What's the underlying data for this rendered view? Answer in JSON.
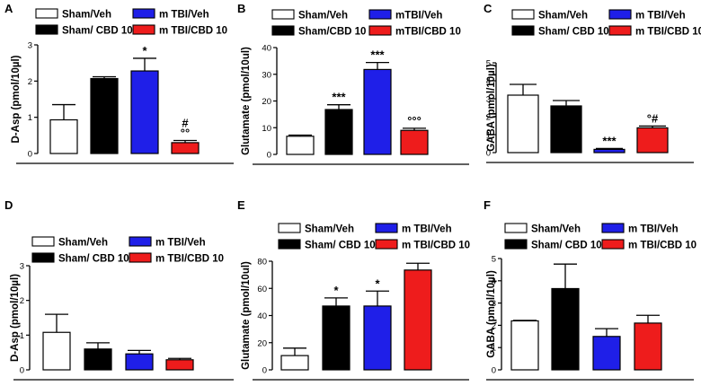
{
  "colors": {
    "sham_veh": "#ffffff",
    "sham_cbd": "#000000",
    "tbi_veh": "#1f1fe8",
    "tbi_cbd": "#ee1c1c"
  },
  "chart_data": [
    {
      "type": "bar",
      "panel_label": "A",
      "ylabel": "D-Asp (pmol/10µl)",
      "ylim": [
        0,
        3
      ],
      "yticks": [
        0,
        1,
        2,
        3
      ],
      "legend": [
        "Sham/Veh",
        "m TBI/Veh",
        "Sham/ CBD 10",
        "m TBI/CBD 10"
      ],
      "series": [
        {
          "name": "Sham/Veh",
          "value": 0.93,
          "error": 0.42,
          "annotation": ""
        },
        {
          "name": "Sham/ CBD 10",
          "value": 2.07,
          "error": 0.05,
          "annotation": ""
        },
        {
          "name": "m TBI/Veh",
          "value": 2.28,
          "error": 0.35,
          "annotation": "*"
        },
        {
          "name": "m TBI/CBD 10",
          "value": 0.3,
          "error": 0.06,
          "annotation": "#\n°°"
        }
      ]
    },
    {
      "type": "bar",
      "panel_label": "B",
      "ylabel": "Glutamate (pmol/10ul)",
      "ylim": [
        0,
        40
      ],
      "yticks": [
        0,
        10,
        20,
        30,
        40
      ],
      "legend": [
        "Sham/Veh",
        "mTBI/Veh",
        "Sham/CBD 10",
        "mTBI/CBD 10"
      ],
      "series": [
        {
          "name": "Sham/Veh",
          "value": 6.8,
          "error": 0.4,
          "annotation": ""
        },
        {
          "name": "Sham/CBD 10",
          "value": 16.8,
          "error": 1.8,
          "annotation": "***"
        },
        {
          "name": "mTBI/Veh",
          "value": 31.8,
          "error": 2.6,
          "annotation": "***"
        },
        {
          "name": "mTBI/CBD 10",
          "value": 9.0,
          "error": 0.8,
          "annotation": "°°°"
        }
      ]
    },
    {
      "type": "bar",
      "panel_label": "C",
      "ylabel": "GABA (pmol/10µl)",
      "ylim": [
        0,
        5
      ],
      "yticks": [
        0,
        1,
        2,
        3,
        4,
        5
      ],
      "legend": [
        "Sham/Veh",
        "m TBI/Veh",
        "Sham/ CBD 10",
        "m TBI/CBD 10"
      ],
      "series": [
        {
          "name": "Sham/Veh",
          "value": 3.2,
          "error": 0.6,
          "annotation": ""
        },
        {
          "name": "Sham/ CBD 10",
          "value": 2.6,
          "error": 0.3,
          "annotation": ""
        },
        {
          "name": "m TBI/Veh",
          "value": 0.18,
          "error": 0.05,
          "annotation": "***"
        },
        {
          "name": "m TBI/CBD 10",
          "value": 1.38,
          "error": 0.1,
          "annotation": "°#"
        }
      ]
    },
    {
      "type": "bar",
      "panel_label": "D",
      "ylabel": "D-Asp (pmol/10µl)",
      "ylim": [
        0,
        3
      ],
      "yticks": [
        0,
        1,
        2,
        3
      ],
      "legend": [
        "Sham/Veh",
        "m TBI/Veh",
        "Sham/ CBD 10",
        "m TBI/CBD 10"
      ],
      "series": [
        {
          "name": "Sham/Veh",
          "value": 1.08,
          "error": 0.52,
          "annotation": ""
        },
        {
          "name": "Sham/ CBD 10",
          "value": 0.6,
          "error": 0.18,
          "annotation": ""
        },
        {
          "name": "m TBI/Veh",
          "value": 0.46,
          "error": 0.1,
          "annotation": ""
        },
        {
          "name": "m TBI/CBD 10",
          "value": 0.29,
          "error": 0.04,
          "annotation": ""
        }
      ]
    },
    {
      "type": "bar",
      "panel_label": "E",
      "ylabel": "Glutamate (pmol/10ul)",
      "ylim": [
        0,
        80
      ],
      "yticks": [
        0,
        20,
        40,
        60,
        80
      ],
      "legend": [
        "Sham/Veh",
        "m TBI/Veh",
        "Sham/ CBD 10",
        "m TBI/CBD 10"
      ],
      "series": [
        {
          "name": "Sham/Veh",
          "value": 10.5,
          "error": 5.5,
          "annotation": ""
        },
        {
          "name": "Sham/ CBD 10",
          "value": 47,
          "error": 6,
          "annotation": "*"
        },
        {
          "name": "m TBI/Veh",
          "value": 47,
          "error": 11,
          "annotation": "*"
        },
        {
          "name": "m TBI/CBD 10",
          "value": 73.5,
          "error": 5,
          "annotation": ""
        }
      ]
    },
    {
      "type": "bar",
      "panel_label": "F",
      "ylabel": "GABA (pmol/10µl)",
      "ylim": [
        0,
        5
      ],
      "yticks": [
        0,
        1,
        2,
        3,
        4,
        5
      ],
      "legend": [
        "Sham/Veh",
        "m TBI/Veh",
        "Sham/ CBD 10",
        "m TBI/CBD 10"
      ],
      "series": [
        {
          "name": "Sham/Veh",
          "value": 2.2,
          "error": 0.02,
          "annotation": ""
        },
        {
          "name": "Sham/ CBD 10",
          "value": 3.65,
          "error": 1.1,
          "annotation": ""
        },
        {
          "name": "m TBI/Veh",
          "value": 1.5,
          "error": 0.35,
          "annotation": ""
        },
        {
          "name": "m TBI/CBD 10",
          "value": 2.1,
          "error": 0.35,
          "annotation": ""
        }
      ]
    }
  ]
}
